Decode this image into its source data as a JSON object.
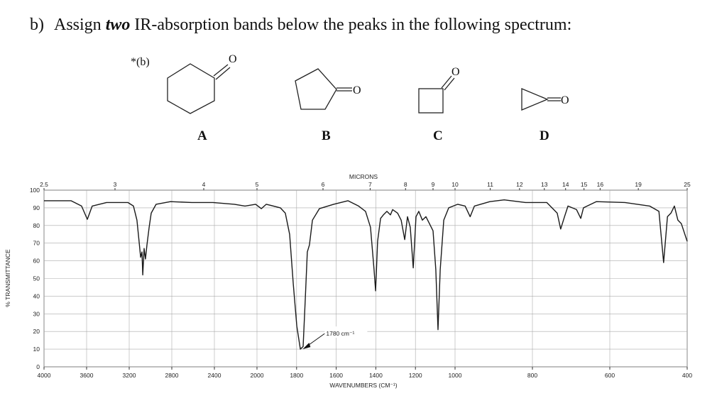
{
  "question": {
    "label": "b)",
    "text_before": "Assign ",
    "emphasis": "two",
    "text_after": " IR-absorption bands below the peaks in the following spectrum:"
  },
  "marker": "*(b)",
  "molecules": [
    {
      "label": "A",
      "atom": "O"
    },
    {
      "label": "B",
      "atom": "O"
    },
    {
      "label": "C",
      "atom": "O"
    },
    {
      "label": "D",
      "atom": "O"
    }
  ],
  "chart_data": {
    "type": "line",
    "x_label": "WAVENUMBERS (CM⁻¹)",
    "y_label": "% TRANSMITTANCE",
    "x2_label": "MICRONS",
    "x": [
      4000,
      3747,
      3647,
      3593,
      3547,
      3413,
      3213,
      3160,
      3127,
      3107,
      3093,
      3080,
      3073,
      3060,
      3047,
      3033,
      3013,
      2993,
      2947,
      2813,
      2613,
      2413,
      2213,
      2113,
      2013,
      1978,
      1953,
      1882,
      1857,
      1835,
      1817,
      1799,
      1781,
      1767,
      1756,
      1746,
      1735,
      1720,
      1685,
      1613,
      1541,
      1487,
      1452,
      1427,
      1409,
      1401,
      1391,
      1376,
      1362,
      1344,
      1326,
      1315,
      1290,
      1272,
      1254,
      1240,
      1226,
      1211,
      1197,
      1183,
      1165,
      1147,
      1129,
      1111,
      1097,
      1086,
      1075,
      1057,
      1032,
      993,
      974,
      961,
      950,
      910,
      873,
      818,
      763,
      736,
      727,
      717,
      708,
      686,
      675,
      668,
      635,
      561,
      497,
      473,
      461,
      451,
      442,
      433,
      424,
      415,
      400
    ],
    "series": [
      {
        "color": "#1a1a1a",
        "values": [
          94,
          94,
          91,
          83.5,
          91,
          93,
          93,
          91,
          83,
          71,
          62,
          65,
          52,
          67,
          61,
          69,
          79,
          87,
          92,
          93.5,
          93,
          93,
          92,
          91,
          92,
          89.5,
          92,
          90,
          87,
          75,
          47,
          23,
          10,
          11.5,
          39,
          65,
          69,
          83,
          89.5,
          92,
          94,
          91,
          88,
          79,
          55,
          43,
          71,
          84,
          86,
          88,
          86,
          89,
          87,
          83,
          72,
          85,
          79,
          56,
          85,
          88,
          83,
          85,
          81,
          77,
          55,
          21,
          55,
          83,
          90,
          92,
          91,
          85,
          91,
          93.5,
          94.5,
          93,
          93,
          87,
          78,
          85,
          91,
          89,
          84,
          90,
          93.5,
          93,
          91,
          88,
          59,
          85,
          87,
          91,
          83,
          81,
          71
        ]
      }
    ],
    "xlim": [
      4000,
      400
    ],
    "x_scale_breaks": [
      2000,
      1000
    ],
    "xticks": [
      4000,
      3600,
      3200,
      2800,
      2400,
      2000,
      1800,
      1600,
      1400,
      1200,
      1000,
      800,
      600,
      400
    ],
    "x2ticks": [
      2.5,
      3,
      4,
      5,
      6,
      7,
      8,
      9,
      10,
      11,
      12,
      13,
      14,
      15,
      16,
      19,
      25
    ],
    "ylim": [
      0,
      100
    ],
    "yticks": [
      0,
      10,
      20,
      30,
      40,
      50,
      60,
      70,
      80,
      90,
      100
    ],
    "grid": true,
    "annotation": {
      "text": "1780 cm⁻¹",
      "x": 1780,
      "y": 10
    }
  }
}
